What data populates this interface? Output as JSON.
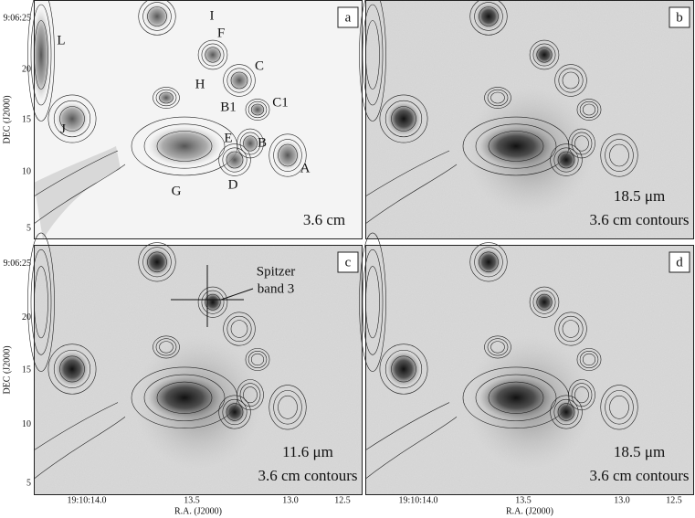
{
  "axes": {
    "y_title": "DEC (J2000)",
    "x_title": "R.A. (J2000)",
    "y_ticks": [
      "9:06:25",
      "20",
      "15",
      "10",
      "5"
    ],
    "x_ticks": [
      "19:10:14.0",
      "13.5",
      "13.0",
      "12.5"
    ]
  },
  "panels": [
    {
      "label": "a",
      "captions": [
        "3.6 cm"
      ],
      "sources": [
        "L",
        "I",
        "F",
        "C",
        "H",
        "B1",
        "C1",
        "J",
        "E",
        "B",
        "G",
        "D",
        "A"
      ]
    },
    {
      "label": "b",
      "captions": [
        "18.5 μm",
        "3.6 cm contours"
      ]
    },
    {
      "label": "c",
      "captions": [
        "11.6 μm",
        "3.6 cm contours"
      ],
      "annotation": [
        "Spitzer",
        "band 3"
      ]
    },
    {
      "label": "d",
      "captions": [
        "18.5 μm",
        "3.6 cm contours"
      ]
    }
  ]
}
